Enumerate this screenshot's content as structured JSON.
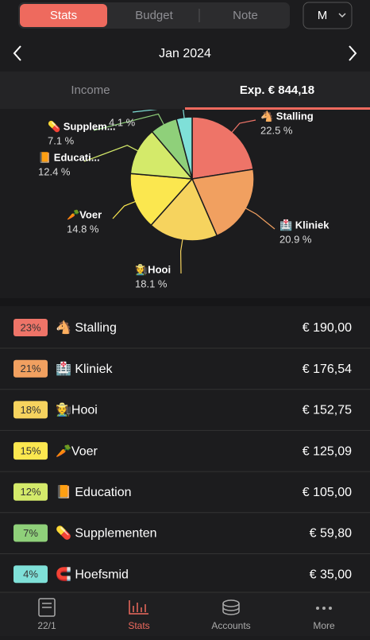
{
  "tabs": [
    "Stats",
    "Budget",
    "Note"
  ],
  "period": "M",
  "header": {
    "month": "Jan 2024"
  },
  "subtabs": {
    "income": "Income",
    "expense": "Exp. € 844,18"
  },
  "chart_data": {
    "type": "pie",
    "categories": [
      "🐴 Stalling",
      "🏥 Kliniek",
      "🧑‍🌾Hooi",
      "🥕Voer",
      "📙 Educati...",
      "💊 Supplem...",
      null
    ],
    "values": [
      22.5,
      20.9,
      18.1,
      14.8,
      12.4,
      7.1,
      4.1
    ],
    "value_labels": [
      "22.5 %",
      "20.9 %",
      "18.1 %",
      "14.8 %",
      "12.4 %",
      "7.1 %",
      "4.1 %"
    ],
    "colors": [
      "#ee7468",
      "#f1a060",
      "#f6d35e",
      "#fbe74f",
      "#d4ea6a",
      "#8fd07a",
      "#7fe0d8"
    ]
  },
  "list": {
    "rows": [
      {
        "percent": "23%",
        "name": "🐴 Stalling",
        "amount": "€ 190,00"
      },
      {
        "percent": "21%",
        "name": "🏥 Kliniek",
        "amount": "€ 176,54"
      },
      {
        "percent": "18%",
        "name": "🧑‍🌾Hooi",
        "amount": "€ 152,75"
      },
      {
        "percent": "15%",
        "name": "🥕Voer",
        "amount": "€ 125,09"
      },
      {
        "percent": "12%",
        "name": "📙 Education",
        "amount": "€ 105,00"
      },
      {
        "percent": "7%",
        "name": "💊 Supplementen",
        "amount": "€ 59,80"
      },
      {
        "percent": "4%",
        "name": "🧲 Hoefsmid",
        "amount": "€ 35,00"
      }
    ]
  },
  "nav": [
    "22/1",
    "Stats",
    "Accounts",
    "More"
  ]
}
